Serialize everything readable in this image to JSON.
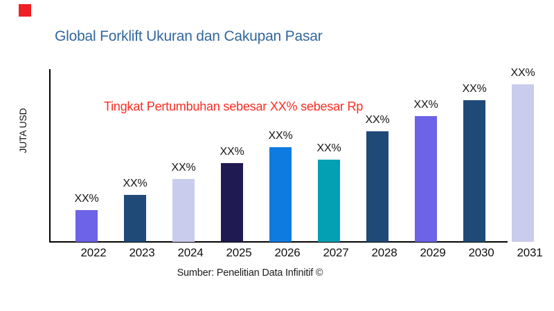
{
  "page": {
    "background": "#ffffff"
  },
  "logo": {
    "color": "#EE2024"
  },
  "chart_data": {
    "type": "bar",
    "title": "Global Forklift Ukuran dan Cakupan Pasar",
    "title_color": "#31679B",
    "ylabel": "JUTA USD",
    "xlabel": "",
    "annotation": {
      "text": "Tingkat Pertumbuhan sebesar XX% sebesar Rp",
      "color": "#FA2D23"
    },
    "source": "Sumber: Penelitian Data Infinitif ©",
    "categories": [
      "2022",
      "2023",
      "2024",
      "2025",
      "2026",
      "2027",
      "2028",
      "2029",
      "2030",
      "2031"
    ],
    "bar_labels": [
      "XX%",
      "XX%",
      "XX%",
      "XX%",
      "XX%",
      "XX%",
      "XX%",
      "XX%",
      "XX%",
      "XX%"
    ],
    "relative_heights": [
      20,
      30,
      40,
      50,
      60,
      52,
      70,
      80,
      90,
      100
    ],
    "bar_colors": [
      "#6C63E6",
      "#1F4A78",
      "#C9CCEC",
      "#1F1A52",
      "#0E7BE0",
      "#02A0B2",
      "#1F4A78",
      "#6C63E6",
      "#1F4A78",
      "#C9CCEC"
    ],
    "axis_color": "#000000",
    "value_axis": {
      "tick_labels_visible": false
    },
    "legend": "none",
    "grid": "off"
  }
}
